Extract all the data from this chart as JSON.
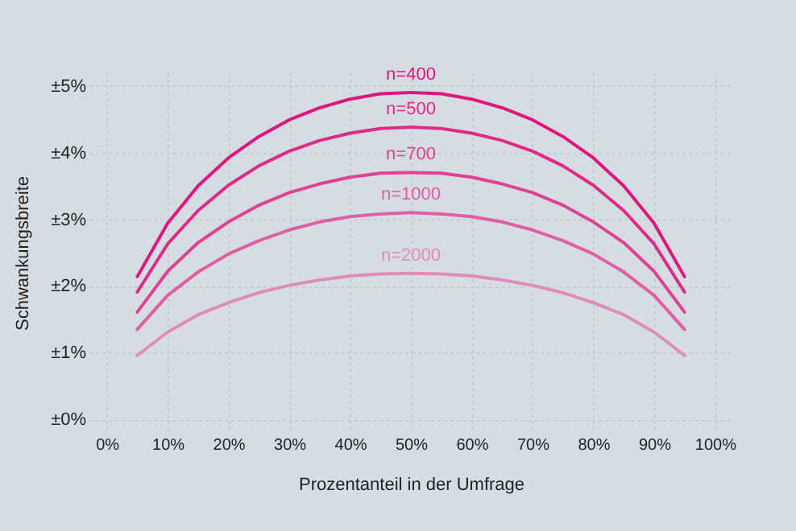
{
  "chart_data": {
    "type": "line",
    "xlabel": "Prozentanteil in der Umfrage",
    "ylabel": "Schwankungsbreite",
    "x": [
      5,
      10,
      15,
      20,
      25,
      30,
      35,
      40,
      45,
      50,
      55,
      60,
      65,
      70,
      75,
      80,
      85,
      90,
      95
    ],
    "series": [
      {
        "name": "n=400",
        "color": "#e0157d",
        "values": [
          2.14,
          2.94,
          3.5,
          3.92,
          4.24,
          4.49,
          4.67,
          4.8,
          4.88,
          4.9,
          4.88,
          4.8,
          4.67,
          4.49,
          4.24,
          3.92,
          3.5,
          2.94,
          2.14
        ]
      },
      {
        "name": "n=500",
        "color": "#e02a88",
        "values": [
          1.91,
          2.63,
          3.13,
          3.51,
          3.8,
          4.02,
          4.18,
          4.29,
          4.36,
          4.38,
          4.36,
          4.29,
          4.18,
          4.02,
          3.8,
          3.51,
          3.13,
          2.63,
          1.91
        ]
      },
      {
        "name": "n=700",
        "color": "#e04293",
        "values": [
          1.61,
          2.22,
          2.65,
          2.96,
          3.21,
          3.4,
          3.53,
          3.63,
          3.69,
          3.7,
          3.69,
          3.63,
          3.53,
          3.4,
          3.21,
          2.96,
          2.65,
          2.22,
          1.61
        ]
      },
      {
        "name": "n=1000",
        "color": "#e05ea3",
        "values": [
          1.35,
          1.86,
          2.21,
          2.48,
          2.68,
          2.84,
          2.96,
          3.04,
          3.08,
          3.1,
          3.08,
          3.04,
          2.96,
          2.84,
          2.68,
          2.48,
          2.21,
          1.86,
          1.35
        ]
      },
      {
        "name": "n=2000",
        "color": "#e08cbb",
        "values": [
          0.96,
          1.31,
          1.57,
          1.75,
          1.9,
          2.01,
          2.09,
          2.15,
          2.18,
          2.19,
          2.18,
          2.15,
          2.09,
          2.01,
          1.9,
          1.75,
          1.57,
          1.31,
          0.96
        ]
      }
    ],
    "xlim": [
      -3,
      103
    ],
    "ylim": [
      -0.2,
      5.2
    ],
    "xticks": [
      {
        "value": 0,
        "label": "0%"
      },
      {
        "value": 10,
        "label": "10%"
      },
      {
        "value": 20,
        "label": "20%"
      },
      {
        "value": 30,
        "label": "30%"
      },
      {
        "value": 40,
        "label": "40%"
      },
      {
        "value": 50,
        "label": "50%"
      },
      {
        "value": 60,
        "label": "60%"
      },
      {
        "value": 70,
        "label": "70%"
      },
      {
        "value": 80,
        "label": "80%"
      },
      {
        "value": 90,
        "label": "90%"
      },
      {
        "value": 100,
        "label": "100%"
      }
    ],
    "yticks": [
      {
        "value": 0,
        "label": "±0%"
      },
      {
        "value": 1,
        "label": "±1%"
      },
      {
        "value": 2,
        "label": "±2%"
      },
      {
        "value": 3,
        "label": "±3%"
      },
      {
        "value": 4,
        "label": "±4%"
      },
      {
        "value": 5,
        "label": "±5%"
      }
    ],
    "grid": true,
    "legend": false,
    "marker": "none",
    "line_style": "solid"
  }
}
